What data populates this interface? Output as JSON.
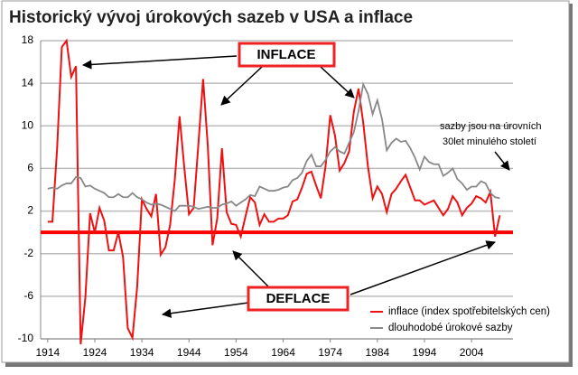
{
  "chart_data": {
    "type": "line",
    "title": "Historický vývoj úrokových sazeb v USA a inflace",
    "x": [
      1914,
      1915,
      1916,
      1917,
      1918,
      1919,
      1920,
      1921,
      1922,
      1923,
      1924,
      1925,
      1926,
      1927,
      1928,
      1929,
      1930,
      1931,
      1932,
      1933,
      1934,
      1935,
      1936,
      1937,
      1938,
      1939,
      1940,
      1941,
      1942,
      1943,
      1944,
      1945,
      1946,
      1947,
      1948,
      1949,
      1950,
      1951,
      1952,
      1953,
      1954,
      1955,
      1956,
      1957,
      1958,
      1959,
      1960,
      1961,
      1962,
      1963,
      1964,
      1965,
      1966,
      1967,
      1968,
      1969,
      1970,
      1971,
      1972,
      1973,
      1974,
      1975,
      1976,
      1977,
      1978,
      1979,
      1980,
      1981,
      1982,
      1983,
      1984,
      1985,
      1986,
      1987,
      1988,
      1989,
      1990,
      1991,
      1992,
      1993,
      1994,
      1995,
      1996,
      1997,
      1998,
      1999,
      2000,
      2001,
      2002,
      2003,
      2004,
      2005,
      2006,
      2007,
      2008,
      2009,
      2010
    ],
    "series": [
      {
        "name": "inflace (index spotřebitelských cen)",
        "color": "#ee1111",
        "values": [
          1.0,
          1.0,
          7.9,
          17.4,
          18.0,
          14.6,
          15.6,
          -10.5,
          -6.1,
          1.8,
          0,
          2.3,
          1.1,
          -1.7,
          -1.7,
          0,
          -2.3,
          -9.0,
          -9.9,
          -5.1,
          3.1,
          2.2,
          1.5,
          3.6,
          -2.1,
          -1.4,
          0.7,
          5.0,
          10.9,
          6.1,
          1.7,
          2.3,
          8.3,
          14.4,
          8.1,
          -1.2,
          1.3,
          7.9,
          1.9,
          0.8,
          0.7,
          -0.4,
          1.5,
          3.3,
          2.8,
          0.7,
          1.7,
          1.0,
          1.0,
          1.3,
          1.3,
          1.6,
          2.9,
          3.1,
          4.2,
          5.5,
          5.7,
          4.4,
          3.2,
          6.2,
          11.0,
          9.1,
          5.8,
          6.5,
          7.6,
          11.3,
          13.5,
          10.3,
          6.2,
          3.2,
          4.3,
          3.6,
          1.9,
          3.6,
          4.1,
          4.8,
          5.4,
          4.2,
          3.0,
          3.0,
          2.6,
          2.8,
          3.0,
          2.3,
          1.6,
          2.2,
          3.4,
          2.8,
          1.6,
          2.3,
          2.7,
          3.4,
          3.2,
          2.8,
          3.8,
          -0.4,
          1.6
        ]
      },
      {
        "name": "dlouhodobé úrokové sazby",
        "color": "#888888",
        "values": [
          4.1,
          4.2,
          4.1,
          4.4,
          4.6,
          4.6,
          5.2,
          5.1,
          4.3,
          4.4,
          4.1,
          3.9,
          3.7,
          3.3,
          3.3,
          3.6,
          3.3,
          3.3,
          3.7,
          3.3,
          3.1,
          2.8,
          2.6,
          2.7,
          2.6,
          2.4,
          2.2,
          2.0,
          2.5,
          2.5,
          2.5,
          2.4,
          2.2,
          2.3,
          2.4,
          2.3,
          2.3,
          2.6,
          2.7,
          2.9,
          2.5,
          2.8,
          3.1,
          3.5,
          3.4,
          4.3,
          4.1,
          3.9,
          3.9,
          4.0,
          4.2,
          4.3,
          4.9,
          5.1,
          5.6,
          6.7,
          7.3,
          6.2,
          6.2,
          6.8,
          7.6,
          8.0,
          7.6,
          7.4,
          8.4,
          9.4,
          11.4,
          13.9,
          13.0,
          11.1,
          12.4,
          10.6,
          7.7,
          8.4,
          8.8,
          8.5,
          8.6,
          7.9,
          7.0,
          5.9,
          7.1,
          6.6,
          6.4,
          6.4,
          5.3,
          5.6,
          6.0,
          5.0,
          4.6,
          4.0,
          4.3,
          4.3,
          4.8,
          4.6,
          3.7,
          3.3,
          3.2
        ]
      }
    ],
    "xlim": [
      1912.5,
      2012.8
    ],
    "xticks": [
      1914,
      1924,
      1934,
      1944,
      1954,
      1964,
      1974,
      1984,
      1994,
      2004
    ],
    "ylim": [
      -10,
      18
    ],
    "yticks": [
      -10,
      -6,
      -2,
      2,
      6,
      10,
      14,
      18
    ],
    "grid": true,
    "reference_line": {
      "value": 0,
      "color": "#ff0000"
    },
    "annotations": [
      "INFLACE",
      "DEFLACE",
      "sazby jsou na úrovních",
      "30let  minulého století"
    ],
    "legend": "lower right"
  }
}
